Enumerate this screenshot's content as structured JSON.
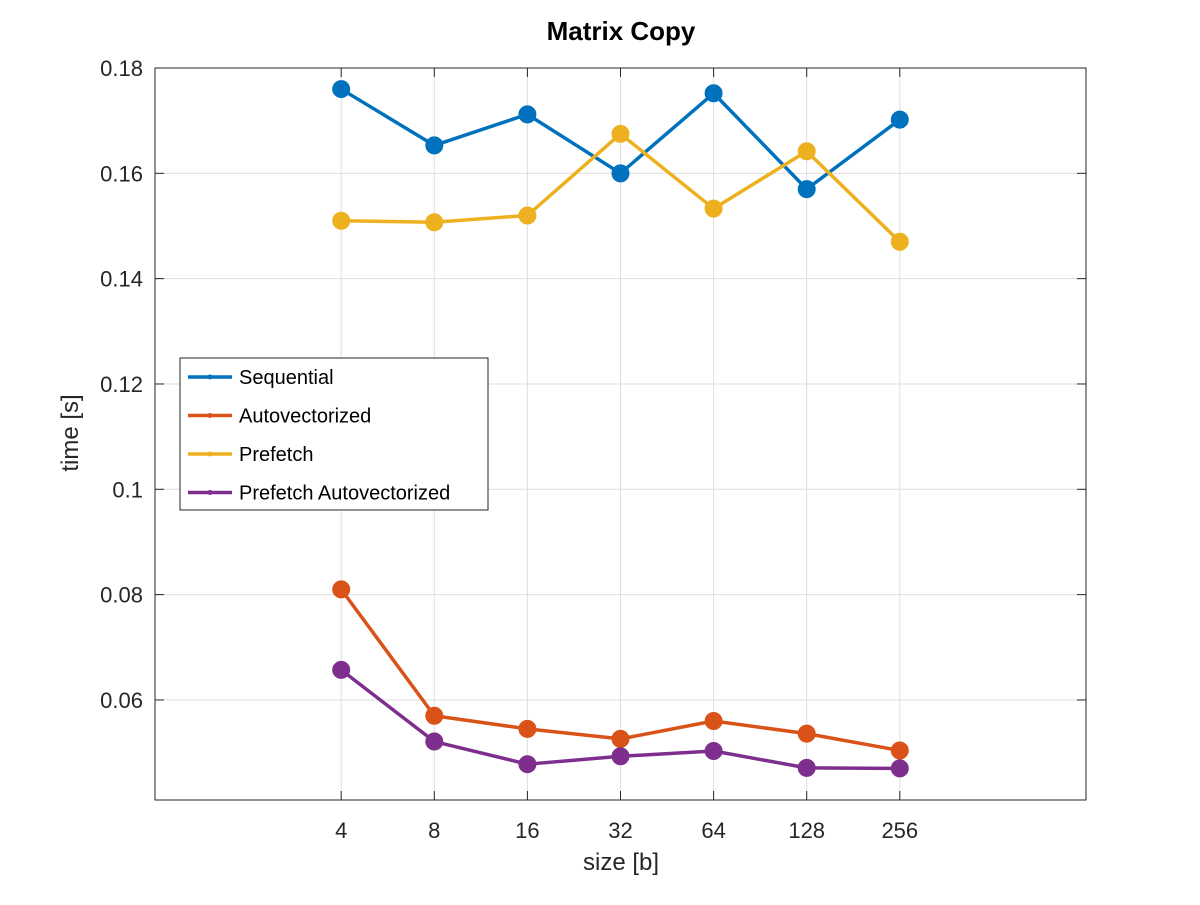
{
  "chart_data": {
    "type": "line",
    "title": "Matrix Copy",
    "xlabel": "size [b]",
    "ylabel": "time [s]",
    "x_scale": "log2",
    "categories": [
      "4",
      "8",
      "16",
      "32",
      "64",
      "128",
      "256"
    ],
    "x": [
      4,
      8,
      16,
      32,
      64,
      128,
      256
    ],
    "xlim": [
      1,
      1024
    ],
    "ylim": [
      0.041,
      0.18
    ],
    "yticks": [
      0.06,
      0.08,
      0.1,
      0.12,
      0.14,
      0.16,
      0.18
    ],
    "ytick_labels": [
      "0.06",
      "0.08",
      "0.1",
      "0.12",
      "0.14",
      "0.16",
      "0.18"
    ],
    "grid": true,
    "legend_position": "middle-left",
    "series": [
      {
        "name": "Sequential",
        "color": "#0072BD",
        "values": [
          0.176,
          0.1653,
          0.1712,
          0.16,
          0.1752,
          0.157,
          0.1702
        ]
      },
      {
        "name": "Autovectorized",
        "color": "#D95319",
        "values": [
          0.081,
          0.057,
          0.0545,
          0.0526,
          0.056,
          0.0536,
          0.0504
        ]
      },
      {
        "name": "Prefetch",
        "color": "#EDB120",
        "values": [
          0.151,
          0.1507,
          0.152,
          0.1675,
          0.1533,
          0.1642,
          0.147
        ]
      },
      {
        "name": "Prefetch Autovectorized",
        "color": "#7E2F8E",
        "values": [
          0.0657,
          0.0521,
          0.0478,
          0.0493,
          0.0503,
          0.0471,
          0.047
        ]
      }
    ]
  }
}
